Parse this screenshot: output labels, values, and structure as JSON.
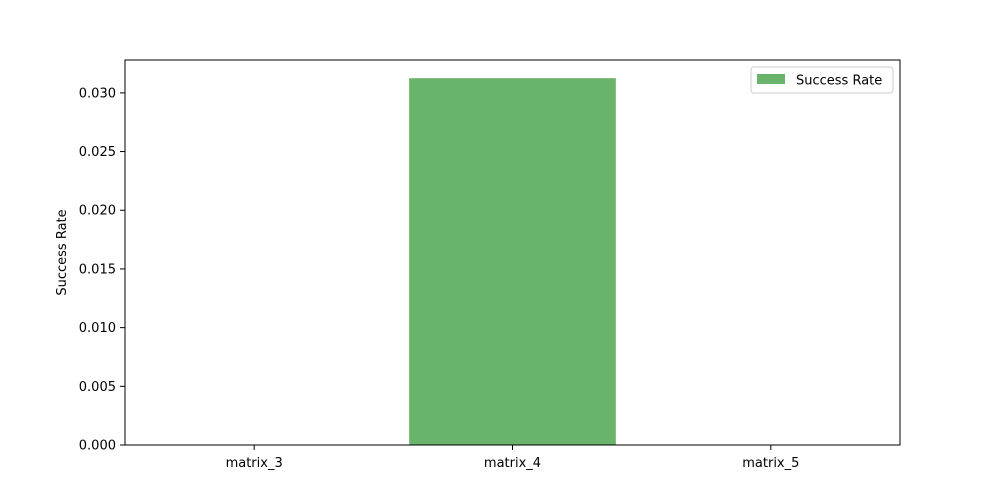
{
  "chart_data": {
    "type": "bar",
    "title": "",
    "xlabel": "",
    "ylabel": "Success Rate",
    "categories": [
      "matrix_3",
      "matrix_4",
      "matrix_5"
    ],
    "series": [
      {
        "name": "Success Rate",
        "values": [
          0.0,
          0.03125,
          0.0
        ],
        "color": "#69b36a"
      }
    ],
    "ylim": [
      0,
      0.0328
    ],
    "yticks": [
      0.0,
      0.005,
      0.01,
      0.015,
      0.02,
      0.025,
      0.03
    ],
    "ytick_labels": [
      "0.000",
      "0.005",
      "0.010",
      "0.015",
      "0.020",
      "0.025",
      "0.030"
    ],
    "grid": false,
    "legend_position": "top-right"
  }
}
